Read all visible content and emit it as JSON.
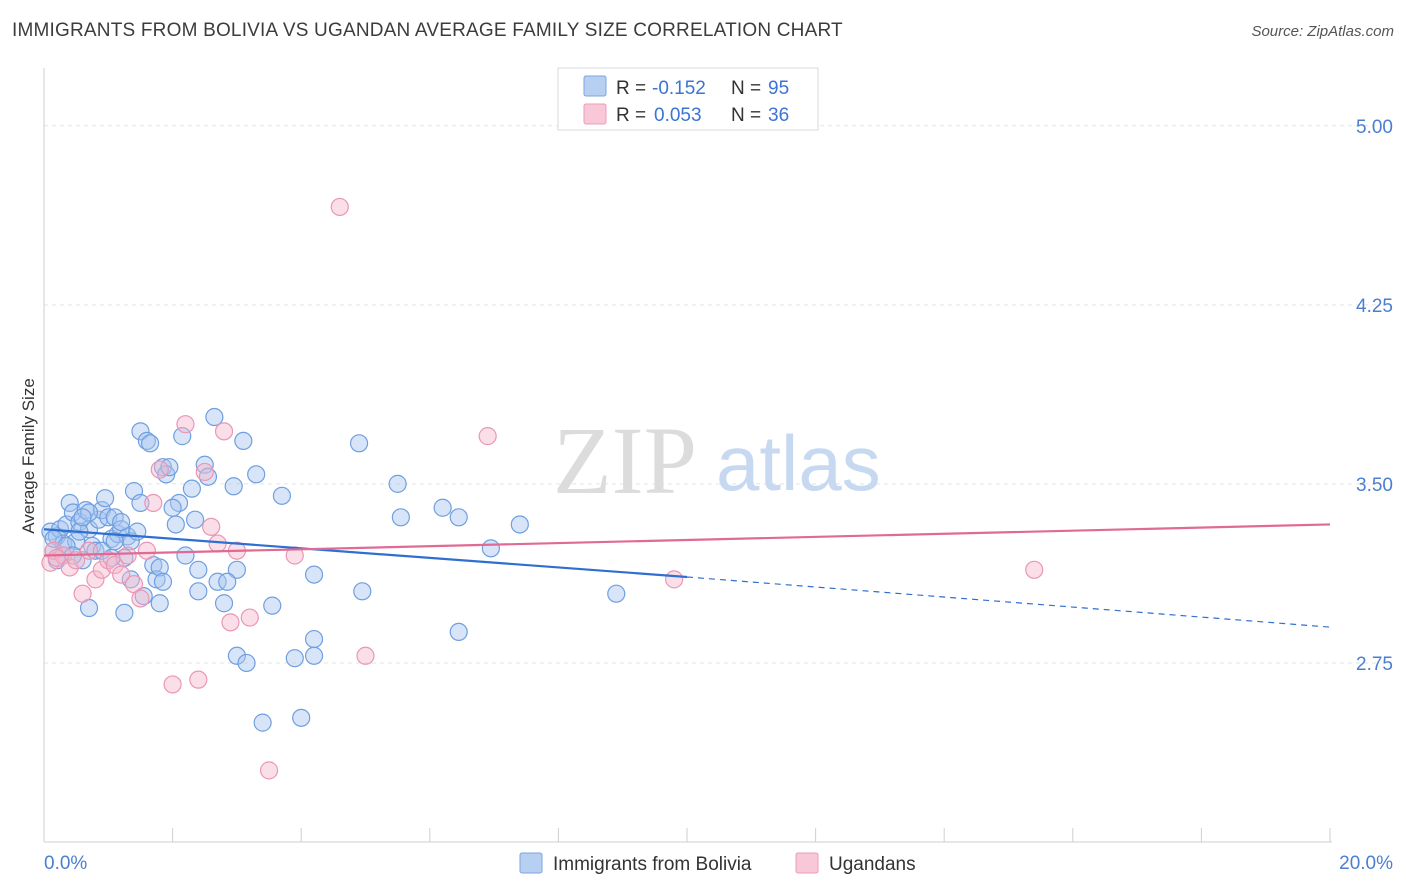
{
  "title": "IMMIGRANTS FROM BOLIVIA VS UGANDAN AVERAGE FAMILY SIZE CORRELATION CHART",
  "source": "Source: ZipAtlas.com",
  "watermark": {
    "zip": "ZIP",
    "atlas": "atlas"
  },
  "colors": {
    "blue": "#2f6fd1",
    "blue_fill": "#a9c6ef",
    "pink": "#e06a94",
    "pink_fill": "#f5b9cd",
    "axis_text": "#4a7fd0",
    "grid": "#e3e3e3"
  },
  "legend_top": {
    "rows": [
      {
        "r_label": "R = ",
        "r_value": "-0.152",
        "n_label": "N = ",
        "n_value": "95"
      },
      {
        "r_label": "R = ",
        "r_value": "0.053",
        "n_label": "N = ",
        "n_value": "36"
      }
    ]
  },
  "legend_bottom": [
    "Immigrants from Bolivia",
    "Ugandans"
  ],
  "chart_data": {
    "type": "scatter",
    "title": "IMMIGRANTS FROM BOLIVIA VS UGANDAN AVERAGE FAMILY SIZE CORRELATION CHART",
    "xlabel": "",
    "ylabel": "Average Family Size",
    "xlim": [
      0,
      20
    ],
    "ylim": [
      2.0,
      5.2
    ],
    "x_tick_labels": [
      "0.0%",
      "20.0%"
    ],
    "y_ticks": [
      2.75,
      3.5,
      4.25,
      5.0
    ],
    "y_tick_labels": [
      "2.75",
      "3.50",
      "4.25",
      "5.00"
    ],
    "grid": true,
    "legend": "top-center",
    "series": [
      {
        "name": "Immigrants from Bolivia",
        "color": "#2f6fd1",
        "trend": {
          "x0": 0,
          "y0": 3.31,
          "x1": 10,
          "y1": 3.11,
          "dash_to_x": 20,
          "dash_to_y": 2.9
        },
        "points": [
          [
            0.1,
            3.3
          ],
          [
            0.15,
            3.22
          ],
          [
            0.2,
            3.28
          ],
          [
            0.2,
            3.18
          ],
          [
            0.25,
            3.31
          ],
          [
            0.3,
            3.25
          ],
          [
            0.3,
            3.2
          ],
          [
            0.35,
            3.33
          ],
          [
            0.4,
            3.42
          ],
          [
            0.45,
            3.38
          ],
          [
            0.5,
            3.26
          ],
          [
            0.55,
            3.34
          ],
          [
            0.6,
            3.18
          ],
          [
            0.65,
            3.39
          ],
          [
            0.7,
            3.31
          ],
          [
            0.75,
            3.24
          ],
          [
            0.8,
            3.22
          ],
          [
            0.85,
            3.35
          ],
          [
            0.9,
            3.39
          ],
          [
            0.95,
            3.44
          ],
          [
            1.0,
            3.36
          ],
          [
            1.05,
            3.27
          ],
          [
            1.1,
            3.36
          ],
          [
            1.15,
            3.29
          ],
          [
            1.2,
            3.31
          ],
          [
            1.25,
            3.19
          ],
          [
            1.3,
            3.28
          ],
          [
            1.35,
            3.26
          ],
          [
            1.4,
            3.47
          ],
          [
            1.45,
            3.3
          ],
          [
            1.5,
            3.72
          ],
          [
            1.5,
            3.42
          ],
          [
            1.6,
            3.68
          ],
          [
            1.65,
            3.67
          ],
          [
            1.7,
            3.16
          ],
          [
            1.75,
            3.1
          ],
          [
            1.8,
            3.15
          ],
          [
            1.85,
            3.57
          ],
          [
            1.9,
            3.54
          ],
          [
            1.95,
            3.57
          ],
          [
            2.05,
            3.33
          ],
          [
            2.1,
            3.42
          ],
          [
            2.15,
            3.7
          ],
          [
            2.2,
            3.2
          ],
          [
            2.3,
            3.48
          ],
          [
            2.35,
            3.35
          ],
          [
            2.4,
            3.14
          ],
          [
            2.5,
            3.58
          ],
          [
            2.55,
            3.53
          ],
          [
            2.65,
            3.78
          ],
          [
            2.7,
            3.09
          ],
          [
            2.8,
            3.0
          ],
          [
            2.95,
            3.49
          ],
          [
            3.0,
            3.14
          ],
          [
            3.1,
            3.68
          ],
          [
            3.3,
            3.54
          ],
          [
            3.4,
            2.5
          ],
          [
            3.7,
            3.45
          ],
          [
            3.9,
            2.77
          ],
          [
            4.0,
            2.52
          ],
          [
            4.2,
            3.12
          ],
          [
            4.2,
            2.85
          ],
          [
            4.9,
            3.67
          ],
          [
            4.95,
            3.05
          ],
          [
            5.5,
            3.5
          ],
          [
            5.55,
            3.36
          ],
          [
            6.2,
            3.4
          ],
          [
            6.45,
            2.88
          ],
          [
            6.45,
            3.36
          ],
          [
            6.95,
            3.23
          ],
          [
            7.4,
            3.33
          ],
          [
            8.9,
            3.04
          ],
          [
            0.15,
            3.27
          ],
          [
            0.35,
            3.24
          ],
          [
            0.55,
            3.3
          ],
          [
            0.7,
            3.38
          ],
          [
            0.9,
            3.22
          ],
          [
            1.05,
            3.19
          ],
          [
            1.2,
            3.34
          ],
          [
            1.35,
            3.1
          ],
          [
            0.7,
            2.98
          ],
          [
            1.25,
            2.96
          ],
          [
            1.55,
            3.03
          ],
          [
            1.85,
            3.09
          ],
          [
            1.8,
            3.0
          ],
          [
            2.4,
            3.05
          ],
          [
            2.85,
            3.09
          ],
          [
            3.0,
            2.78
          ],
          [
            3.15,
            2.75
          ],
          [
            4.2,
            2.78
          ],
          [
            2.0,
            3.4
          ],
          [
            1.1,
            3.26
          ],
          [
            0.45,
            3.2
          ],
          [
            0.6,
            3.36
          ],
          [
            3.55,
            2.99
          ]
        ]
      },
      {
        "name": "Ugandans",
        "color": "#e06a94",
        "trend": {
          "x0": 0,
          "y0": 3.2,
          "x1": 20,
          "y1": 3.33
        },
        "points": [
          [
            0.1,
            3.17
          ],
          [
            0.15,
            3.22
          ],
          [
            0.3,
            3.2
          ],
          [
            0.4,
            3.15
          ],
          [
            0.5,
            3.18
          ],
          [
            0.6,
            3.04
          ],
          [
            0.7,
            3.22
          ],
          [
            0.8,
            3.1
          ],
          [
            0.9,
            3.14
          ],
          [
            1.0,
            3.18
          ],
          [
            1.1,
            3.16
          ],
          [
            1.2,
            3.12
          ],
          [
            1.3,
            3.2
          ],
          [
            1.4,
            3.08
          ],
          [
            1.5,
            3.02
          ],
          [
            1.6,
            3.22
          ],
          [
            1.7,
            3.42
          ],
          [
            1.8,
            3.56
          ],
          [
            2.0,
            2.66
          ],
          [
            2.2,
            3.75
          ],
          [
            2.4,
            2.68
          ],
          [
            2.5,
            3.55
          ],
          [
            2.6,
            3.32
          ],
          [
            2.7,
            3.25
          ],
          [
            2.8,
            3.72
          ],
          [
            2.9,
            2.92
          ],
          [
            3.0,
            3.22
          ],
          [
            3.2,
            2.94
          ],
          [
            3.5,
            2.3
          ],
          [
            3.9,
            3.2
          ],
          [
            4.6,
            4.66
          ],
          [
            5.0,
            2.78
          ],
          [
            6.9,
            3.7
          ],
          [
            9.8,
            3.1
          ],
          [
            15.4,
            3.14
          ],
          [
            0.2,
            3.19
          ]
        ]
      }
    ]
  }
}
